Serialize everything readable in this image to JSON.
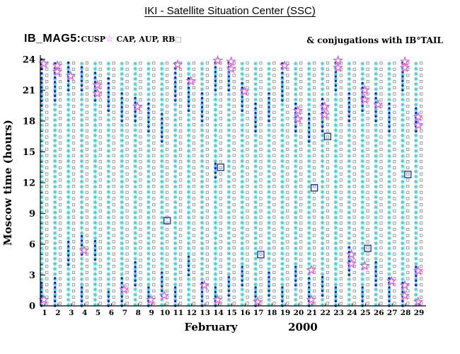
{
  "title": "IKI - Satellite Situation Center (SSC)",
  "legend": {
    "dataset": "IB_MAG5:",
    "items": [
      {
        "label": "CUSP",
        "marker": "magenta-star",
        "sep": "  "
      },
      {
        "label": "CAP",
        "marker": null,
        "sep": ", "
      },
      {
        "label": "AUP",
        "marker": null,
        "sep": ", "
      },
      {
        "label": "RB",
        "marker": "open-square",
        "sep": ""
      }
    ],
    "right_note": "& conjugations with IB°TAIL"
  },
  "colors": {
    "cyan": "#3ed0d0",
    "blue": "#1b1bd0",
    "magenta": "#dd55d8",
    "square_gray": "#8a8a8a",
    "big_square": "#16309a",
    "axis": "#000000"
  },
  "chart_data": {
    "type": "scatter",
    "title": "IKI - Satellite Situation Center (SSC)",
    "xlabel": "February 2000",
    "xlabel_parts": [
      "February",
      "2000"
    ],
    "ylabel": "Moscow time (hours)",
    "xlim": [
      1,
      29
    ],
    "ylim": [
      0,
      24
    ],
    "grid": false,
    "legend_position": "top",
    "yticks": [
      0,
      3,
      6,
      9,
      12,
      15,
      18,
      21,
      24
    ],
    "xticks": [
      1,
      2,
      3,
      4,
      5,
      6,
      7,
      8,
      9,
      10,
      11,
      12,
      13,
      14,
      15,
      16,
      17,
      18,
      19,
      20,
      21,
      22,
      23,
      24,
      25,
      26,
      27,
      28,
      29
    ],
    "series": [
      {
        "name": "CUSP",
        "marker": "magenta-open-star"
      },
      {
        "name": "CAP",
        "marker": "cyan-asterisk-column"
      },
      {
        "name": "AUP",
        "marker": "blue-filled-dot"
      },
      {
        "name": "RB",
        "marker": "gray-open-square-column"
      },
      {
        "name": "IB_TAIL conjugation",
        "marker": "large-open-square"
      }
    ],
    "columns": {
      "asterisk_step": 0.5,
      "square_step": 0.6,
      "dot_step": 0.45,
      "hours": [
        0,
        24
      ]
    },
    "days": [
      {
        "day": 1,
        "dots": [
          [
            0,
            2.5
          ],
          [
            19.5,
            24
          ]
        ],
        "stars": [
          23.6,
          0.6
        ],
        "big_squares": []
      },
      {
        "day": 2,
        "dots": [
          [
            0,
            3
          ],
          [
            20,
            24
          ]
        ],
        "stars": [
          23.4,
          22.8
        ],
        "big_squares": []
      },
      {
        "day": 3,
        "dots": [
          [
            4,
            6.5
          ],
          [
            21,
            24
          ]
        ],
        "stars": [
          22.4
        ],
        "big_squares": []
      },
      {
        "day": 4,
        "dots": [
          [
            0,
            2
          ],
          [
            5,
            7
          ],
          [
            21,
            23.5
          ]
        ],
        "stars": [
          5.4
        ],
        "big_squares": []
      },
      {
        "day": 5,
        "dots": [
          [
            4.5,
            6.5
          ],
          [
            20,
            23
          ]
        ],
        "stars": [
          21.5,
          20.7
        ],
        "big_squares": []
      },
      {
        "day": 6,
        "dots": [
          [
            0,
            1.5
          ],
          [
            19,
            22.5
          ]
        ],
        "stars": [],
        "big_squares": []
      },
      {
        "day": 7,
        "dots": [
          [
            0,
            3
          ],
          [
            18,
            21
          ]
        ],
        "stars": [
          1.6
        ],
        "big_squares": []
      },
      {
        "day": 8,
        "dots": [
          [
            2,
            4.5
          ],
          [
            18,
            20.5
          ]
        ],
        "stars": [
          19.4
        ],
        "big_squares": []
      },
      {
        "day": 9,
        "dots": [
          [
            0,
            2
          ],
          [
            17,
            20
          ]
        ],
        "stars": [
          0.6
        ],
        "big_squares": []
      },
      {
        "day": 10,
        "dots": [
          [
            1,
            3.5
          ],
          [
            16,
            19
          ]
        ],
        "stars": [
          1.0
        ],
        "big_squares": [
          8.3
        ]
      },
      {
        "day": 11,
        "dots": [
          [
            0,
            2
          ],
          [
            20,
            24
          ]
        ],
        "stars": [
          23.5
        ],
        "big_squares": []
      },
      {
        "day": 12,
        "dots": [
          [
            3,
            5
          ],
          [
            19,
            22.5
          ]
        ],
        "stars": [
          21.9
        ],
        "big_squares": []
      },
      {
        "day": 13,
        "dots": [
          [
            0,
            2.5
          ],
          [
            18,
            21
          ]
        ],
        "stars": [
          2.0
        ],
        "big_squares": []
      },
      {
        "day": 14,
        "dots": [
          [
            0,
            2
          ],
          [
            12.5,
            14
          ],
          [
            21,
            24
          ]
        ],
        "stars": [
          23.9,
          0.6
        ],
        "big_squares": [
          13.5
        ]
      },
      {
        "day": 15,
        "dots": [
          [
            1,
            3
          ],
          [
            21,
            24
          ]
        ],
        "stars": [
          23.8,
          23.1
        ],
        "big_squares": []
      },
      {
        "day": 16,
        "dots": [
          [
            2,
            4
          ],
          [
            19,
            22
          ]
        ],
        "stars": [
          20.9
        ],
        "big_squares": []
      },
      {
        "day": 17,
        "dots": [
          [
            0,
            2
          ],
          [
            17,
            20
          ]
        ],
        "stars": [
          0.4
        ],
        "big_squares": [
          5.0
        ]
      },
      {
        "day": 18,
        "dots": [
          [
            1,
            3.5
          ],
          [
            18,
            21
          ]
        ],
        "stars": [],
        "big_squares": []
      },
      {
        "day": 19,
        "dots": [
          [
            0,
            2
          ],
          [
            20,
            24
          ]
        ],
        "stars": [
          23.4
        ],
        "big_squares": []
      },
      {
        "day": 20,
        "dots": [
          [
            2,
            4
          ],
          [
            17,
            20
          ]
        ],
        "stars": [
          19.0,
          18.2
        ],
        "big_squares": []
      },
      {
        "day": 21,
        "dots": [
          [
            0,
            3
          ],
          [
            16,
            19
          ]
        ],
        "stars": [
          3.5,
          0.6
        ],
        "big_squares": [
          11.5
        ]
      },
      {
        "day": 22,
        "dots": [
          [
            1,
            3
          ],
          [
            17,
            20.5
          ]
        ],
        "stars": [
          19.4,
          18.6
        ],
        "big_squares": [
          16.5
        ]
      },
      {
        "day": 23,
        "dots": [
          [
            0,
            2
          ],
          [
            21,
            24
          ]
        ],
        "stars": [
          23.9,
          23.2
        ],
        "big_squares": []
      },
      {
        "day": 24,
        "dots": [
          [
            3,
            6
          ],
          [
            18,
            21
          ]
        ],
        "stars": [
          5.0,
          4.1
        ],
        "big_squares": []
      },
      {
        "day": 25,
        "dots": [
          [
            0,
            2
          ],
          [
            19,
            22
          ]
        ],
        "stars": [
          21.0,
          20.1,
          3.9
        ],
        "big_squares": [
          5.6
        ]
      },
      {
        "day": 26,
        "dots": [
          [
            2,
            4.5
          ],
          [
            18,
            21
          ]
        ],
        "stars": [
          19.6
        ],
        "big_squares": []
      },
      {
        "day": 27,
        "dots": [
          [
            0,
            3
          ],
          [
            17,
            20
          ]
        ],
        "stars": [
          2.4
        ],
        "big_squares": []
      },
      {
        "day": 28,
        "dots": [
          [
            0,
            2.5
          ],
          [
            21,
            24
          ]
        ],
        "stars": [
          23.8,
          23.2,
          2.0,
          1.0
        ],
        "big_squares": [
          12.8
        ]
      },
      {
        "day": 29,
        "dots": [
          [
            2,
            4
          ],
          [
            17,
            19.5
          ]
        ],
        "stars": [
          18.4,
          17.6,
          3.4,
          0.4
        ],
        "big_squares": []
      }
    ]
  }
}
